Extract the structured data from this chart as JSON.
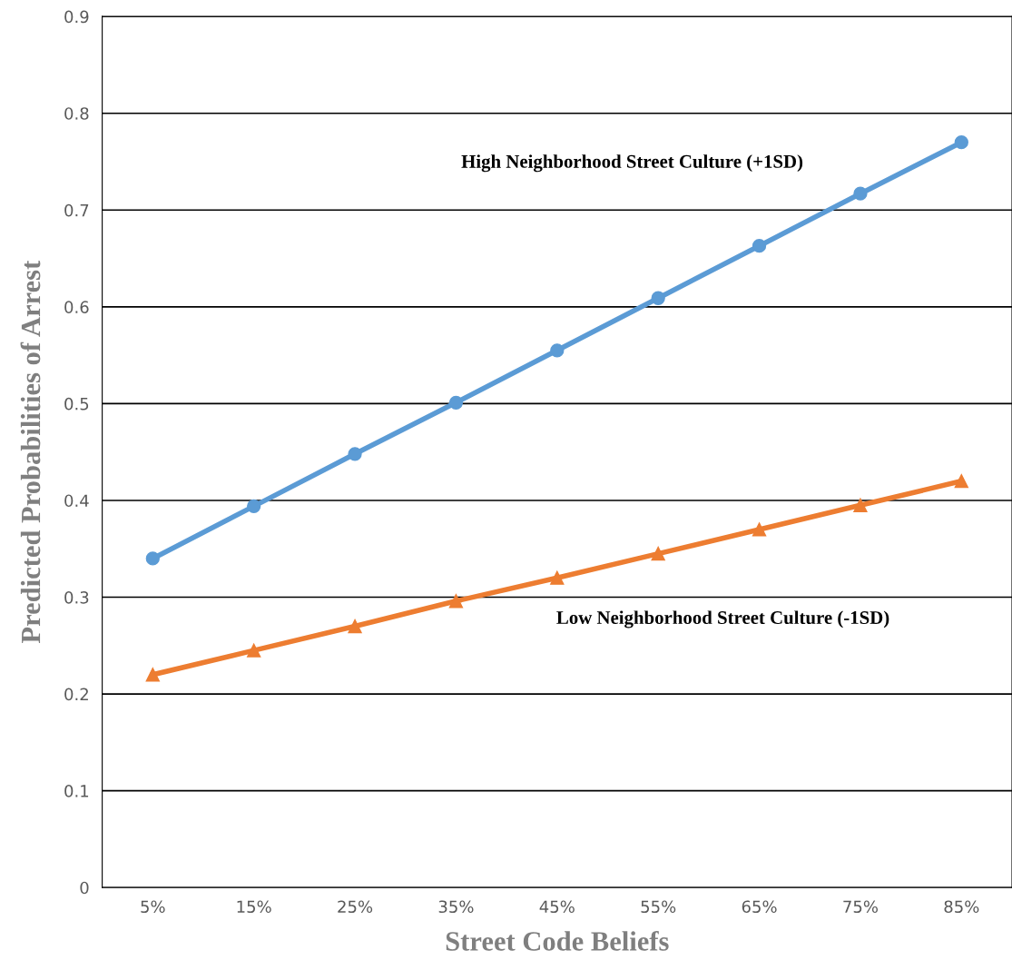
{
  "chart_data": {
    "type": "line",
    "xlabel": "Street Code Beliefs",
    "ylabel": "Predicted Probabilities of Arrest",
    "categories": [
      "5%",
      "15%",
      "25%",
      "35%",
      "45%",
      "55%",
      "65%",
      "75%",
      "85%"
    ],
    "series": [
      {
        "name": "High Neighborhood Street Culture (+1SD)",
        "color": "#5b9bd5",
        "marker": "circle",
        "values": [
          0.34,
          0.394,
          0.448,
          0.501,
          0.555,
          0.609,
          0.663,
          0.717,
          0.77
        ]
      },
      {
        "name": "Low Neighborhood Street Culture (-1SD)",
        "color": "#ed7d31",
        "marker": "triangle",
        "values": [
          0.22,
          0.245,
          0.27,
          0.296,
          0.32,
          0.345,
          0.37,
          0.395,
          0.42
        ]
      }
    ],
    "ylim": [
      0,
      0.9
    ],
    "yticks": [
      0,
      0.1,
      0.2,
      0.3,
      0.4,
      0.5,
      0.6,
      0.7,
      0.8,
      0.9
    ],
    "grid": "y",
    "legend": false,
    "line_style": "solid"
  }
}
